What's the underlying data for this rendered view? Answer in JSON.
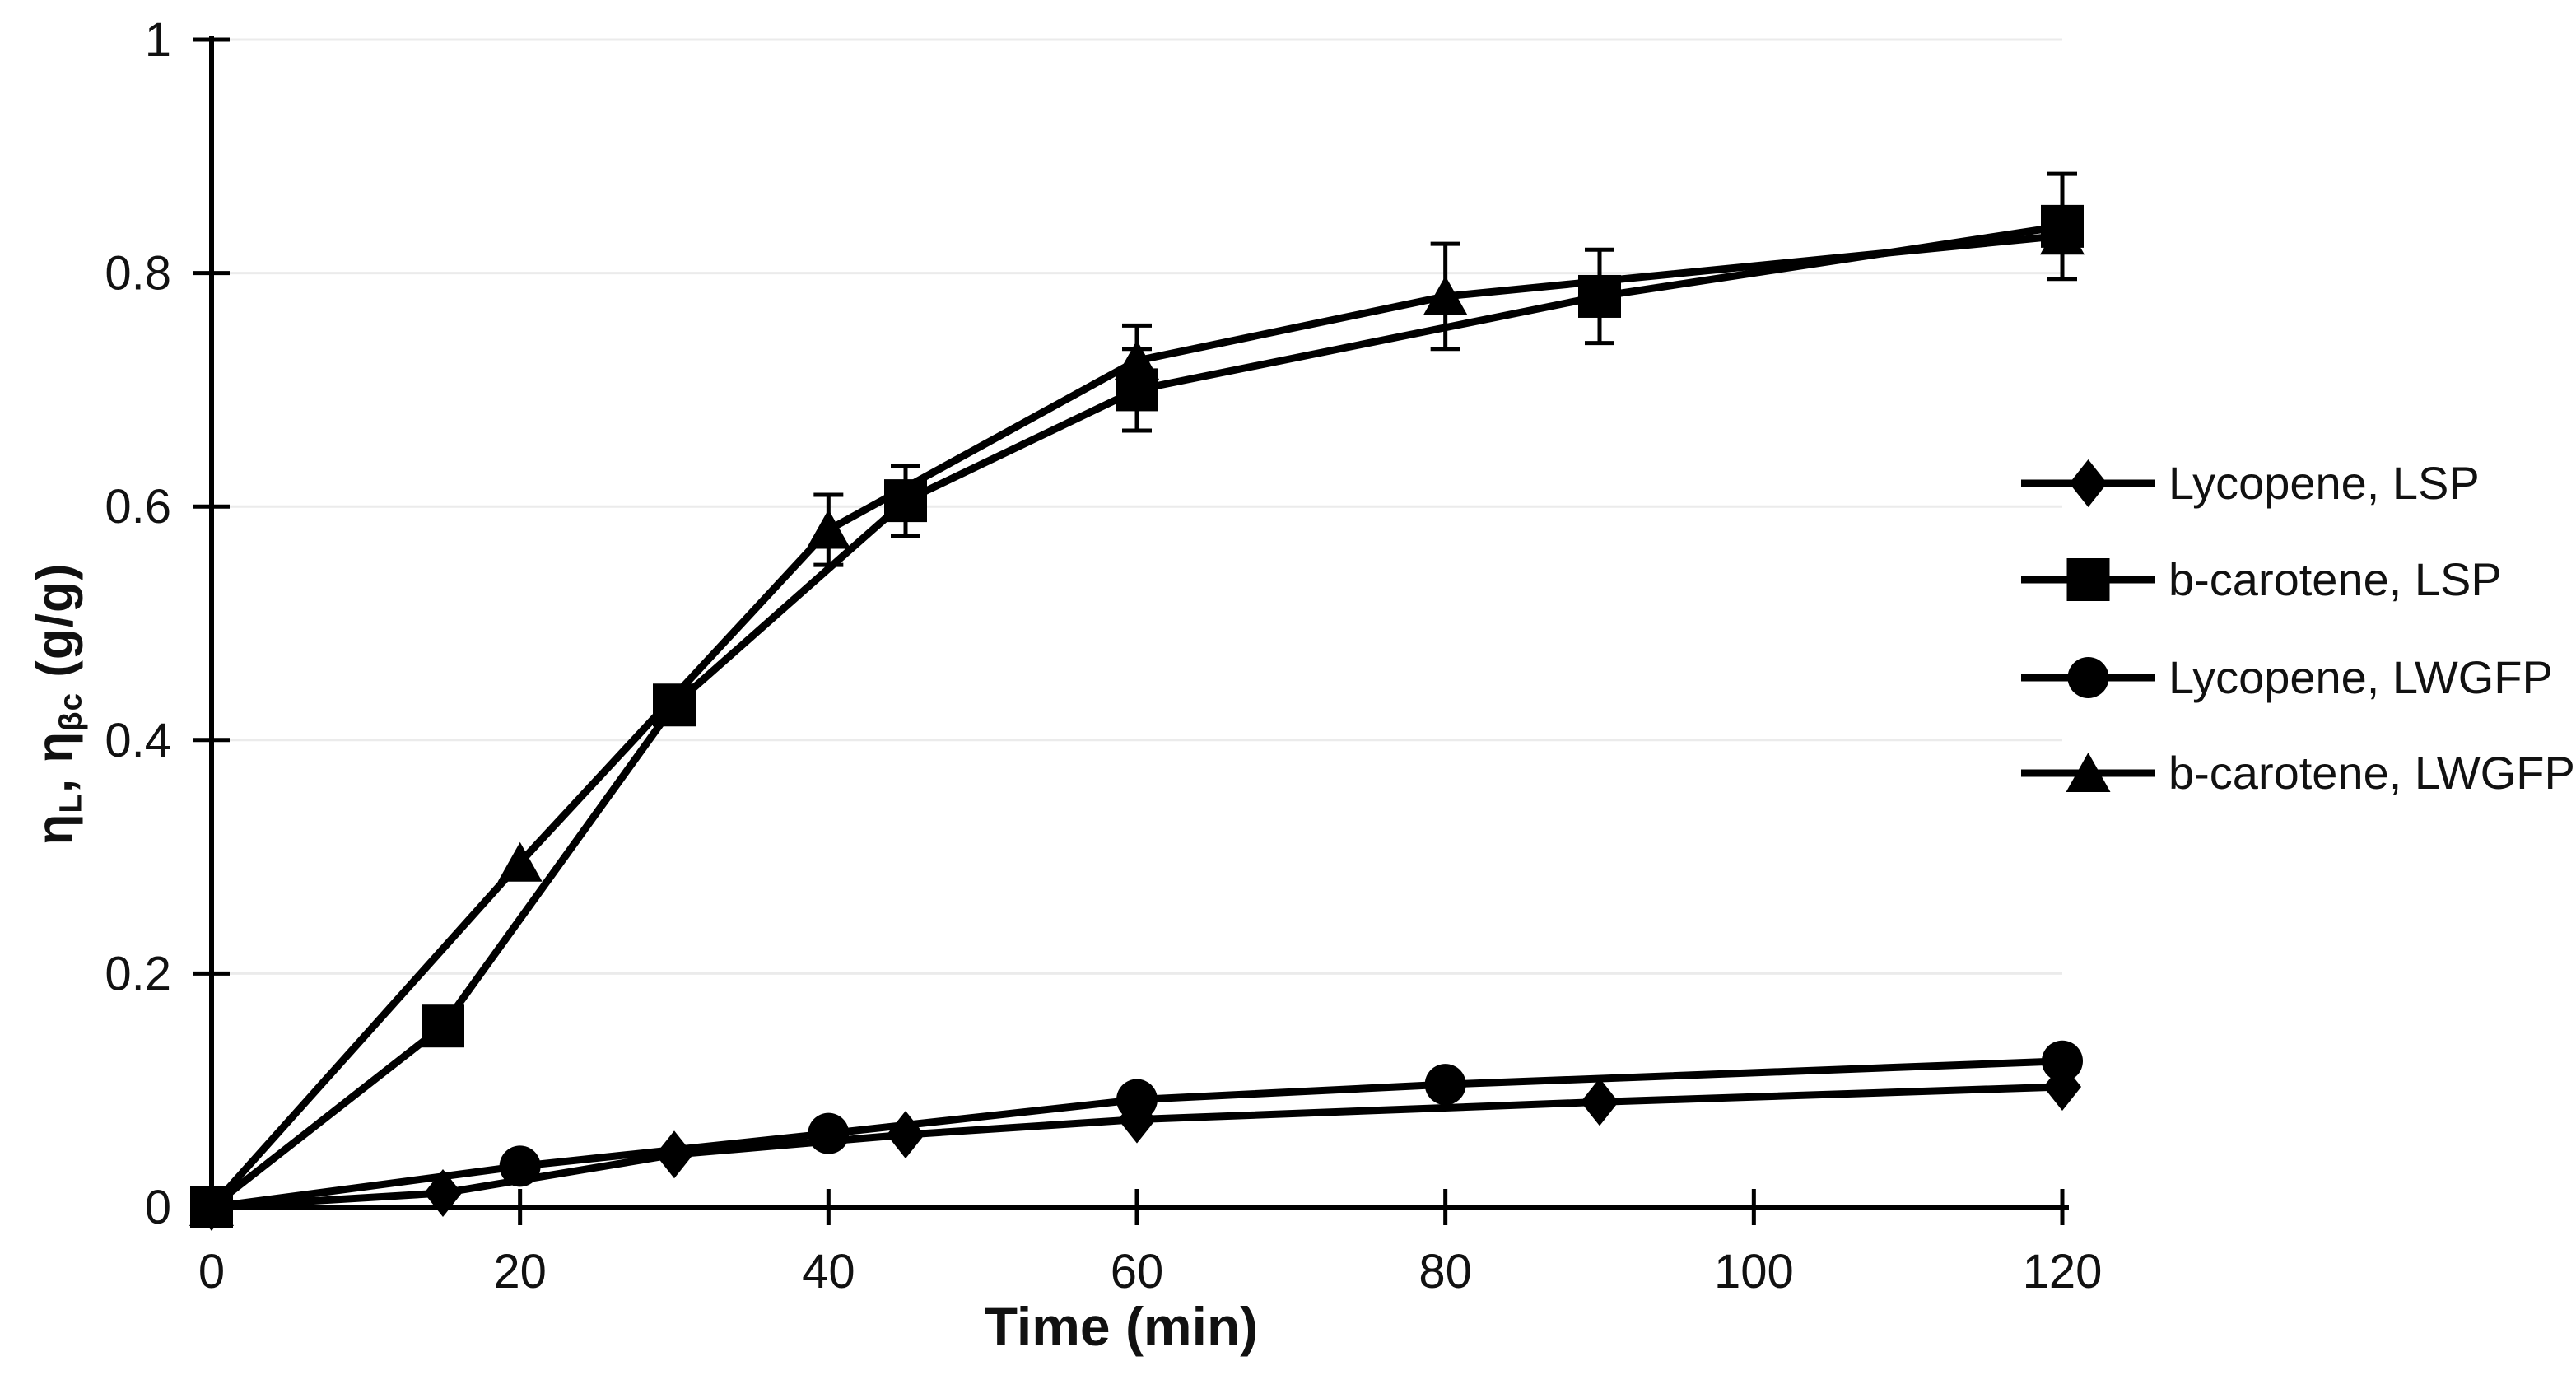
{
  "figure": {
    "background": "#ffffff"
  },
  "chart_data": {
    "type": "line",
    "title": "",
    "xlabel": "Time (min)",
    "ylabel": "ηL, ηβc (g/g)",
    "ylabel_parts": [
      {
        "text": "η",
        "sub": false
      },
      {
        "text": "L",
        "sub": true
      },
      {
        "text": ", η",
        "sub": false
      },
      {
        "text": "βc",
        "sub": true
      },
      {
        "text": " (g/g)",
        "sub": false
      }
    ],
    "xlim": [
      0,
      120
    ],
    "ylim": [
      0,
      1
    ],
    "x_ticks": [
      0,
      20,
      40,
      60,
      80,
      100,
      120
    ],
    "x_tick_labels": [
      "0",
      "20",
      "40",
      "60",
      "80",
      "100",
      "120"
    ],
    "y_ticks": [
      0,
      0.2,
      0.4,
      0.6,
      0.8,
      1
    ],
    "y_tick_labels": [
      "0",
      "0.2",
      "0.4",
      "0.6",
      "0.8",
      "1"
    ],
    "grid": "horizontal-only",
    "tick_style": "cross",
    "legend_position": "right-middle",
    "colors": {
      "series": "#000000",
      "grid": "#ebebeb",
      "axis": "#000000",
      "text": "#111111"
    },
    "series": [
      {
        "name": "Lycopene, LSP",
        "marker": "diamond",
        "x": [
          0,
          15,
          30,
          45,
          60,
          90,
          120
        ],
        "y": [
          0,
          0.012,
          0.045,
          0.062,
          0.075,
          0.09,
          0.103
        ],
        "yerr": [
          0,
          0,
          0,
          0,
          0,
          0,
          0
        ]
      },
      {
        "name": "b-carotene, LSP",
        "marker": "square",
        "x": [
          0,
          15,
          30,
          45,
          60,
          90,
          120
        ],
        "y": [
          0,
          0.155,
          0.43,
          0.605,
          0.7,
          0.78,
          0.84
        ],
        "yerr": [
          0,
          0,
          0.012,
          0.03,
          0.035,
          0.04,
          0.045
        ]
      },
      {
        "name": "Lycopene, LWGFP",
        "marker": "circle",
        "x": [
          0,
          20,
          40,
          60,
          80,
          120
        ],
        "y": [
          0,
          0.035,
          0.063,
          0.092,
          0.105,
          0.125
        ],
        "yerr": [
          0,
          0,
          0,
          0,
          0,
          0
        ]
      },
      {
        "name": "b-carotene, LWGFP",
        "marker": "triangle",
        "x": [
          0,
          20,
          40,
          60,
          80,
          120
        ],
        "y": [
          0,
          0.295,
          0.58,
          0.725,
          0.78,
          0.832
        ],
        "yerr": [
          0,
          0,
          0.03,
          0.03,
          0.045,
          0
        ]
      }
    ],
    "draw_order": [
      0,
      2,
      3,
      1
    ]
  }
}
